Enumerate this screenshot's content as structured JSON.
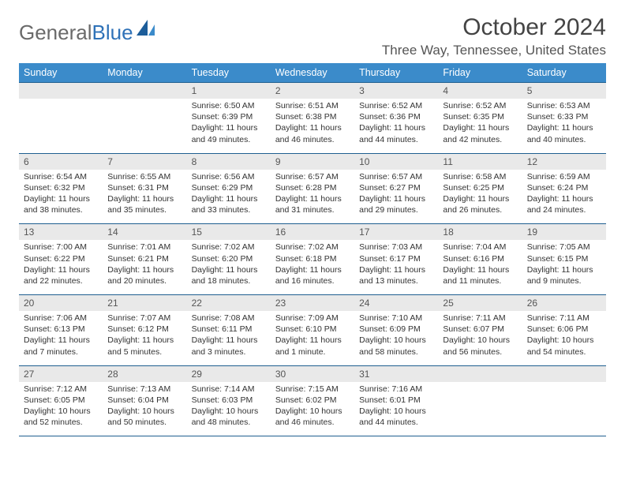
{
  "logo": {
    "word1": "General",
    "word2": "Blue"
  },
  "header": {
    "month_title": "October 2024",
    "location": "Three Way, Tennessee, United States"
  },
  "colors": {
    "header_bg": "#3b8bca",
    "border": "#1f5f90",
    "daynum_bg": "#e9e9e9",
    "text": "#333333",
    "logo_gray": "#6a6a6a",
    "logo_blue": "#2f72b8",
    "page_bg": "#ffffff"
  },
  "typography": {
    "month_title_fontsize": 30,
    "location_fontsize": 17,
    "day_header_fontsize": 12.5,
    "daynum_fontsize": 12,
    "cell_fontsize": 10.5,
    "logo_fontsize": 26
  },
  "day_headers": [
    "Sunday",
    "Monday",
    "Tuesday",
    "Wednesday",
    "Thursday",
    "Friday",
    "Saturday"
  ],
  "weeks": [
    [
      {
        "empty": true
      },
      {
        "empty": true
      },
      {
        "num": "1",
        "sunrise": "Sunrise: 6:50 AM",
        "sunset": "Sunset: 6:39 PM",
        "daylight": "Daylight: 11 hours and 49 minutes."
      },
      {
        "num": "2",
        "sunrise": "Sunrise: 6:51 AM",
        "sunset": "Sunset: 6:38 PM",
        "daylight": "Daylight: 11 hours and 46 minutes."
      },
      {
        "num": "3",
        "sunrise": "Sunrise: 6:52 AM",
        "sunset": "Sunset: 6:36 PM",
        "daylight": "Daylight: 11 hours and 44 minutes."
      },
      {
        "num": "4",
        "sunrise": "Sunrise: 6:52 AM",
        "sunset": "Sunset: 6:35 PM",
        "daylight": "Daylight: 11 hours and 42 minutes."
      },
      {
        "num": "5",
        "sunrise": "Sunrise: 6:53 AM",
        "sunset": "Sunset: 6:33 PM",
        "daylight": "Daylight: 11 hours and 40 minutes."
      }
    ],
    [
      {
        "num": "6",
        "sunrise": "Sunrise: 6:54 AM",
        "sunset": "Sunset: 6:32 PM",
        "daylight": "Daylight: 11 hours and 38 minutes."
      },
      {
        "num": "7",
        "sunrise": "Sunrise: 6:55 AM",
        "sunset": "Sunset: 6:31 PM",
        "daylight": "Daylight: 11 hours and 35 minutes."
      },
      {
        "num": "8",
        "sunrise": "Sunrise: 6:56 AM",
        "sunset": "Sunset: 6:29 PM",
        "daylight": "Daylight: 11 hours and 33 minutes."
      },
      {
        "num": "9",
        "sunrise": "Sunrise: 6:57 AM",
        "sunset": "Sunset: 6:28 PM",
        "daylight": "Daylight: 11 hours and 31 minutes."
      },
      {
        "num": "10",
        "sunrise": "Sunrise: 6:57 AM",
        "sunset": "Sunset: 6:27 PM",
        "daylight": "Daylight: 11 hours and 29 minutes."
      },
      {
        "num": "11",
        "sunrise": "Sunrise: 6:58 AM",
        "sunset": "Sunset: 6:25 PM",
        "daylight": "Daylight: 11 hours and 26 minutes."
      },
      {
        "num": "12",
        "sunrise": "Sunrise: 6:59 AM",
        "sunset": "Sunset: 6:24 PM",
        "daylight": "Daylight: 11 hours and 24 minutes."
      }
    ],
    [
      {
        "num": "13",
        "sunrise": "Sunrise: 7:00 AM",
        "sunset": "Sunset: 6:22 PM",
        "daylight": "Daylight: 11 hours and 22 minutes."
      },
      {
        "num": "14",
        "sunrise": "Sunrise: 7:01 AM",
        "sunset": "Sunset: 6:21 PM",
        "daylight": "Daylight: 11 hours and 20 minutes."
      },
      {
        "num": "15",
        "sunrise": "Sunrise: 7:02 AM",
        "sunset": "Sunset: 6:20 PM",
        "daylight": "Daylight: 11 hours and 18 minutes."
      },
      {
        "num": "16",
        "sunrise": "Sunrise: 7:02 AM",
        "sunset": "Sunset: 6:18 PM",
        "daylight": "Daylight: 11 hours and 16 minutes."
      },
      {
        "num": "17",
        "sunrise": "Sunrise: 7:03 AM",
        "sunset": "Sunset: 6:17 PM",
        "daylight": "Daylight: 11 hours and 13 minutes."
      },
      {
        "num": "18",
        "sunrise": "Sunrise: 7:04 AM",
        "sunset": "Sunset: 6:16 PM",
        "daylight": "Daylight: 11 hours and 11 minutes."
      },
      {
        "num": "19",
        "sunrise": "Sunrise: 7:05 AM",
        "sunset": "Sunset: 6:15 PM",
        "daylight": "Daylight: 11 hours and 9 minutes."
      }
    ],
    [
      {
        "num": "20",
        "sunrise": "Sunrise: 7:06 AM",
        "sunset": "Sunset: 6:13 PM",
        "daylight": "Daylight: 11 hours and 7 minutes."
      },
      {
        "num": "21",
        "sunrise": "Sunrise: 7:07 AM",
        "sunset": "Sunset: 6:12 PM",
        "daylight": "Daylight: 11 hours and 5 minutes."
      },
      {
        "num": "22",
        "sunrise": "Sunrise: 7:08 AM",
        "sunset": "Sunset: 6:11 PM",
        "daylight": "Daylight: 11 hours and 3 minutes."
      },
      {
        "num": "23",
        "sunrise": "Sunrise: 7:09 AM",
        "sunset": "Sunset: 6:10 PM",
        "daylight": "Daylight: 11 hours and 1 minute."
      },
      {
        "num": "24",
        "sunrise": "Sunrise: 7:10 AM",
        "sunset": "Sunset: 6:09 PM",
        "daylight": "Daylight: 10 hours and 58 minutes."
      },
      {
        "num": "25",
        "sunrise": "Sunrise: 7:11 AM",
        "sunset": "Sunset: 6:07 PM",
        "daylight": "Daylight: 10 hours and 56 minutes."
      },
      {
        "num": "26",
        "sunrise": "Sunrise: 7:11 AM",
        "sunset": "Sunset: 6:06 PM",
        "daylight": "Daylight: 10 hours and 54 minutes."
      }
    ],
    [
      {
        "num": "27",
        "sunrise": "Sunrise: 7:12 AM",
        "sunset": "Sunset: 6:05 PM",
        "daylight": "Daylight: 10 hours and 52 minutes."
      },
      {
        "num": "28",
        "sunrise": "Sunrise: 7:13 AM",
        "sunset": "Sunset: 6:04 PM",
        "daylight": "Daylight: 10 hours and 50 minutes."
      },
      {
        "num": "29",
        "sunrise": "Sunrise: 7:14 AM",
        "sunset": "Sunset: 6:03 PM",
        "daylight": "Daylight: 10 hours and 48 minutes."
      },
      {
        "num": "30",
        "sunrise": "Sunrise: 7:15 AM",
        "sunset": "Sunset: 6:02 PM",
        "daylight": "Daylight: 10 hours and 46 minutes."
      },
      {
        "num": "31",
        "sunrise": "Sunrise: 7:16 AM",
        "sunset": "Sunset: 6:01 PM",
        "daylight": "Daylight: 10 hours and 44 minutes."
      },
      {
        "empty": true
      },
      {
        "empty": true
      }
    ]
  ]
}
